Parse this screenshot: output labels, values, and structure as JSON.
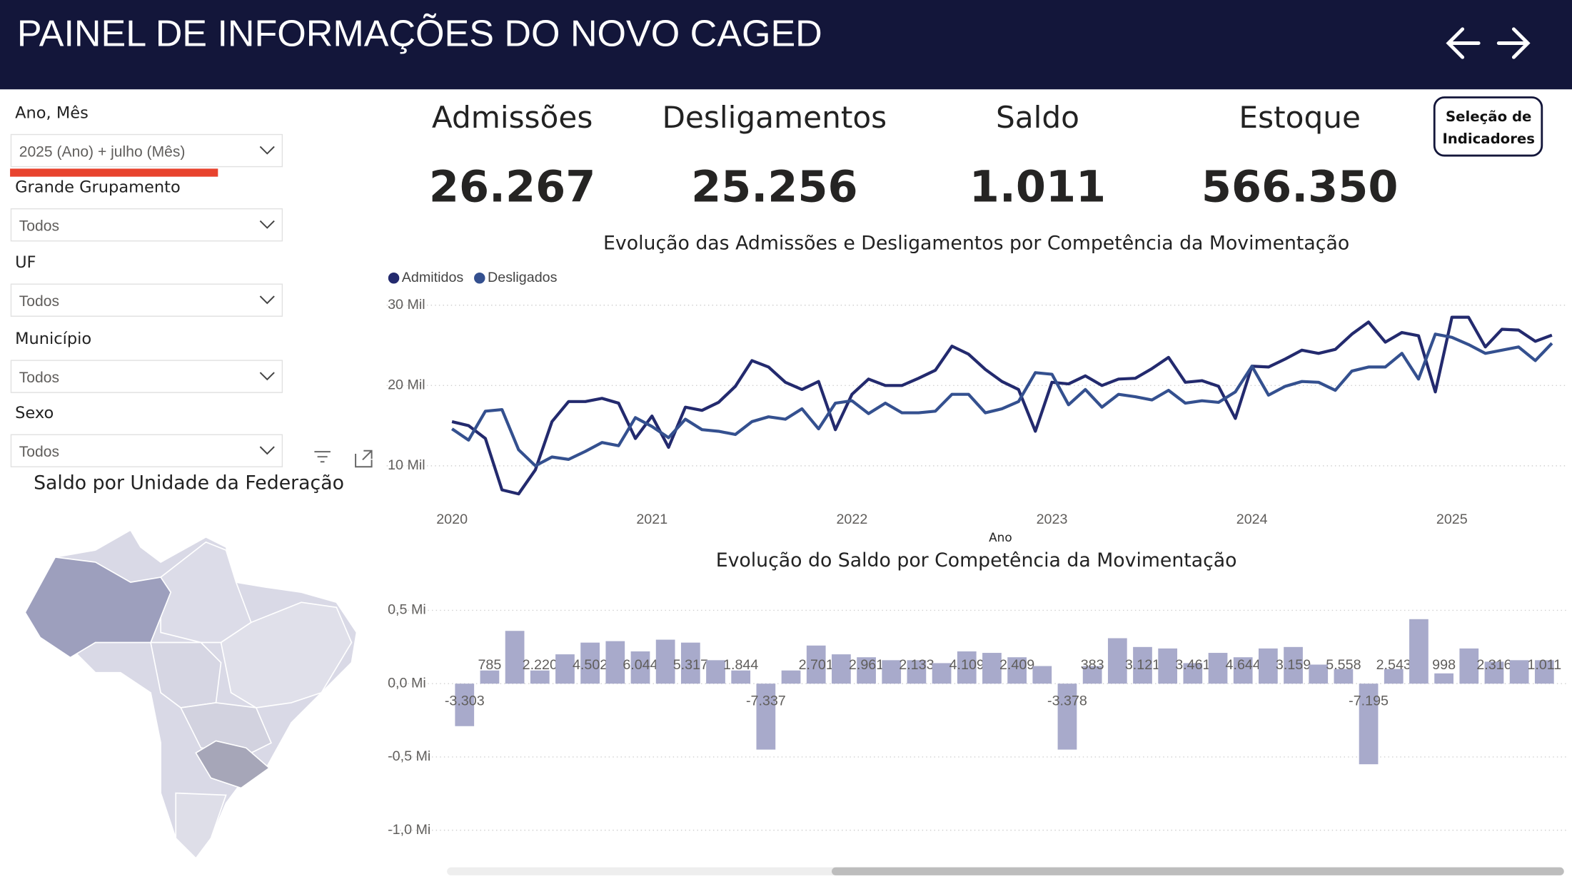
{
  "header": {
    "title": "PAINEL DE INFORMAÇÕES DO NOVO CAGED"
  },
  "filters": [
    {
      "label": "Ano, Mês",
      "value": "2025 (Ano) + julho (Mês)"
    },
    {
      "label": "Grande Grupamento",
      "value": "Todos"
    },
    {
      "label": "UF",
      "value": "Todos"
    },
    {
      "label": "Município",
      "value": "Todos"
    },
    {
      "label": "Sexo",
      "value": "Todos"
    }
  ],
  "kpis": [
    {
      "label": "Admissões",
      "value": "26.267"
    },
    {
      "label": "Desligamentos",
      "value": "25.256"
    },
    {
      "label": "Saldo",
      "value": "1.011"
    },
    {
      "label": "Estoque",
      "value": "566.350"
    }
  ],
  "button": {
    "lines": [
      "Seleção de",
      "Indicadores"
    ]
  },
  "map": {
    "title": "Saldo por Unidade da Federação"
  },
  "chart_data": [
    {
      "type": "line",
      "title": "Evolução das Admissões e Desligamentos por Competência da Movimentação",
      "x_label": "Ano",
      "legend": "top-left",
      "grid": true,
      "x": [
        2020.0,
        2020.083,
        2020.167,
        2020.25,
        2020.333,
        2020.417,
        2020.5,
        2020.583,
        2020.667,
        2020.75,
        2020.833,
        2020.917,
        2021.0,
        2021.083,
        2021.167,
        2021.25,
        2021.333,
        2021.417,
        2021.5,
        2021.583,
        2021.667,
        2021.75,
        2021.833,
        2021.917,
        2022.0,
        2022.083,
        2022.167,
        2022.25,
        2022.333,
        2022.417,
        2022.5,
        2022.583,
        2022.667,
        2022.75,
        2022.833,
        2022.917,
        2023.0,
        2023.083,
        2023.167,
        2023.25,
        2023.333,
        2023.417,
        2023.5,
        2023.583,
        2023.667,
        2023.75,
        2023.833,
        2023.917,
        2024.0,
        2024.083,
        2024.167,
        2024.25,
        2024.333,
        2024.417,
        2024.5,
        2024.583,
        2024.667,
        2024.75,
        2024.833,
        2024.917,
        2025.0,
        2025.083,
        2025.167,
        2025.25,
        2025.333,
        2025.417,
        2025.5
      ],
      "xlim": [
        2019.975,
        2025.5
      ],
      "xticks": [
        2020,
        2021,
        2022,
        2023,
        2024,
        2025
      ],
      "ylim": [
        5,
        31
      ],
      "yticks": [
        {
          "value": 10,
          "label": "10 Mil"
        },
        {
          "value": 20,
          "label": "20 Mil"
        },
        {
          "value": 30,
          "label": "30 Mil"
        }
      ],
      "series": [
        {
          "name": "Admitidos",
          "color": "#232a6e",
          "values": [
            15.5,
            15.0,
            13.4,
            7.0,
            6.5,
            9.5,
            15.5,
            18.0,
            18.0,
            18.4,
            17.8,
            13.4,
            16.2,
            12.3,
            17.3,
            16.9,
            17.9,
            19.9,
            23.1,
            22.3,
            20.4,
            19.5,
            20.5,
            14.5,
            18.9,
            20.8,
            20.0,
            20.0,
            20.9,
            21.9,
            24.9,
            23.9,
            22.0,
            20.5,
            19.5,
            14.3,
            20.4,
            20.2,
            21.2,
            20.0,
            20.8,
            20.9,
            22.1,
            23.5,
            20.4,
            20.6,
            19.9,
            15.9,
            22.4,
            22.3,
            23.3,
            24.4,
            24.0,
            24.5,
            26.4,
            27.9,
            25.4,
            26.6,
            26.2,
            19.2,
            28.5,
            28.5,
            24.8,
            27.0,
            26.9,
            25.5,
            26.267
          ]
        },
        {
          "name": "Desligados",
          "color": "#34508f",
          "values": [
            14.6,
            13.2,
            16.8,
            17.0,
            12.0,
            10.0,
            11.1,
            10.8,
            11.8,
            12.9,
            12.5,
            16.0,
            14.9,
            13.5,
            15.8,
            14.5,
            14.3,
            13.9,
            15.5,
            16.1,
            15.8,
            17.1,
            14.6,
            17.8,
            18.1,
            16.5,
            17.8,
            16.6,
            16.6,
            16.8,
            18.9,
            18.9,
            16.6,
            17.1,
            18.0,
            21.6,
            21.4,
            17.6,
            19.5,
            17.3,
            18.9,
            18.6,
            18.2,
            19.4,
            17.8,
            18.1,
            17.9,
            19.2,
            22.4,
            18.8,
            19.9,
            20.5,
            20.4,
            19.4,
            21.8,
            22.3,
            22.3,
            24.0,
            20.8,
            26.4,
            26.0,
            25.1,
            24.0,
            24.4,
            24.8,
            23.1,
            25.256
          ]
        }
      ]
    },
    {
      "type": "bar",
      "title": "Evolução do Saldo por Competência da Movimentação",
      "grid": true,
      "color": "#a8aacb",
      "ylim": [
        -1.1,
        0.6
      ],
      "yticks": [
        {
          "value": -1,
          "label": "-1,0 Mi"
        },
        {
          "value": -0.5,
          "label": "-0,5 Mi"
        },
        {
          "value": 0,
          "label": "0,0 Mi"
        },
        {
          "value": 0.5,
          "label": "0,5 Mi"
        }
      ],
      "values": [
        -0.29,
        0.09,
        0.36,
        0.09,
        0.2,
        0.28,
        0.29,
        0.22,
        0.3,
        0.28,
        0.16,
        0.09,
        -0.45,
        0.09,
        0.26,
        0.2,
        0.18,
        0.16,
        0.16,
        0.14,
        0.22,
        0.21,
        0.18,
        0.12,
        -0.45,
        0.12,
        0.31,
        0.25,
        0.24,
        0.14,
        0.21,
        0.18,
        0.24,
        0.25,
        0.13,
        0.1,
        -0.55,
        0.1,
        0.44,
        0.07,
        0.24,
        0.15,
        0.16,
        0.16
      ],
      "annotations": [
        "-3.303",
        "785",
        null,
        "2.220",
        null,
        "4.502",
        null,
        "6.044",
        null,
        "5.317",
        null,
        "1.844",
        "-7.337",
        null,
        "2.701",
        null,
        "2.961",
        null,
        "2.133",
        null,
        "4.109",
        null,
        "2.409",
        null,
        "-3.378",
        "383",
        null,
        "3.121",
        null,
        "3.461",
        null,
        "4.644",
        null,
        "3.159",
        null,
        "5.558",
        "-7.195",
        "2.543",
        null,
        "998",
        null,
        "2.316",
        null,
        "1.011"
      ]
    }
  ]
}
